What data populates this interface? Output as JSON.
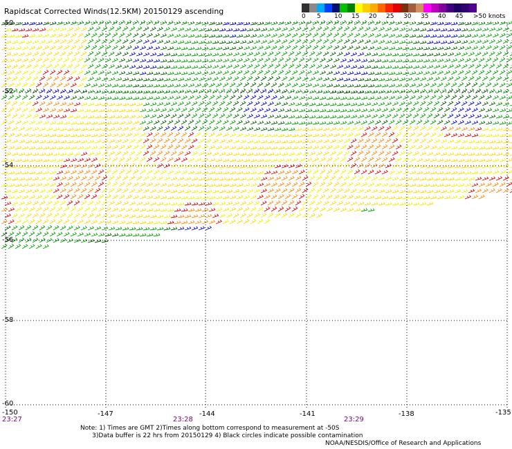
{
  "title": "Rapidscat Corrected Winds(12.5KM) 20150129 ascending",
  "legend": {
    "swatches": [
      "#303030",
      "#8a8a8a",
      "#00aaff",
      "#0040ff",
      "#001070",
      "#00c000",
      "#008000",
      "#ffff00",
      "#ffd000",
      "#ffaa00",
      "#ff6600",
      "#ff2200",
      "#e60000",
      "#7a3010",
      "#a06040",
      "#d09060",
      "#ff00ff",
      "#c000c0",
      "#8000a0",
      "#400080",
      "#200060",
      "#300070",
      "#500090"
    ],
    "labels": [
      "0",
      "5",
      "10",
      "15",
      "20",
      "25",
      "30",
      "35",
      "40",
      "45",
      ">50 knots"
    ]
  },
  "map": {
    "lat_labels": [
      "-50",
      "-52",
      "-54",
      "-56",
      "-58",
      "-60"
    ],
    "lon_labels": [
      "-150",
      "-147",
      "-144",
      "-141",
      "-138",
      "-135"
    ],
    "time_labels": [
      "23:27",
      "23:28",
      "23:29"
    ]
  },
  "note": {
    "line1": "Note: 1) Times are GMT 2)Times along bottom correspond to measurement at -50S",
    "line2": "      3)Data buffer is 22 hrs from 20150129 4) Black circles indicate possible contamination"
  },
  "credit": "NOAA/NESDIS/Office of Research and Applications",
  "colors": {
    "green": "#00a000",
    "dark_green": "#006000",
    "yellow": "#f0f000",
    "light_yellow": "#ffd800",
    "orange": "#ff8800",
    "red": "#e00000",
    "blue": "#0000e0",
    "grid": "#000000"
  }
}
